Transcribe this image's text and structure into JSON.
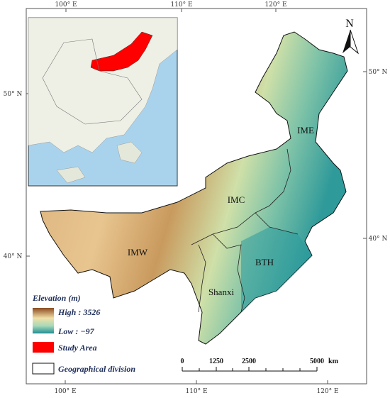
{
  "graticule": {
    "top": [
      "100° E",
      "110° E",
      "120° E"
    ],
    "bottom": [
      "100° E",
      "110° E",
      "120° E"
    ],
    "left": [
      "50° N",
      "40° N"
    ],
    "right": [
      "50° N",
      "40° N"
    ]
  },
  "north": "N",
  "regions": [
    "IME",
    "IMC",
    "IMW",
    "BTH",
    "Shanxi"
  ],
  "legend": {
    "title": "Elevation (m)",
    "high": "High : 3526",
    "low": "Low : −97",
    "study_area": "Study Area",
    "division": "Geographical division"
  },
  "scale_bar": {
    "ticks": [
      0,
      1250,
      2500,
      5000
    ],
    "unit": "km"
  }
}
